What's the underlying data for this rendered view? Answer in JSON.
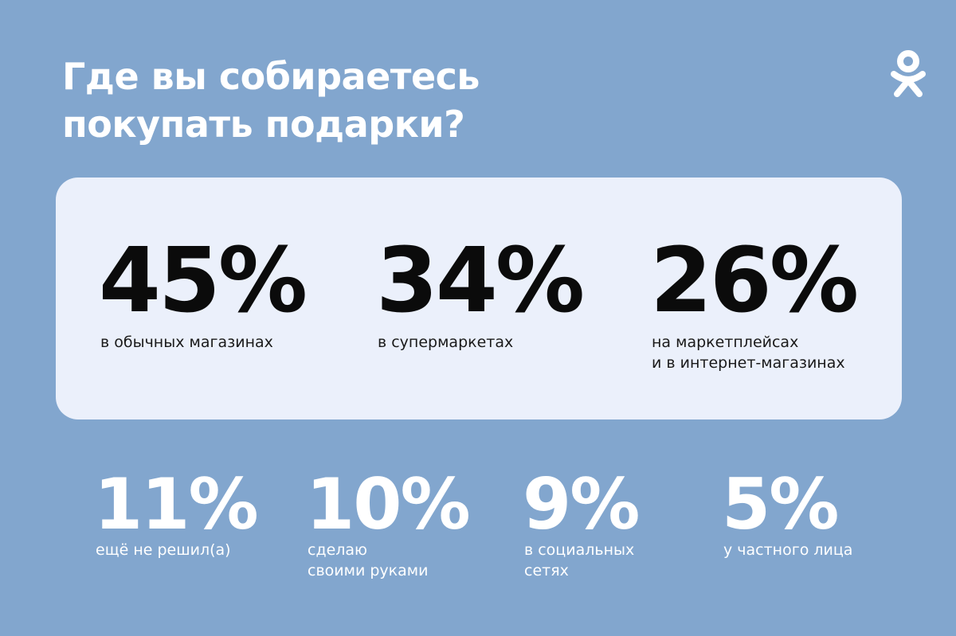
{
  "title": "Где вы собираетесь\nпокупать подарки?",
  "logo": {
    "icon": "odnoklassniki-logo-icon",
    "color": "#ffffff"
  },
  "colors": {
    "background": "#82a6ce",
    "card": "#ebf0fb",
    "primary_text": "#0b0b0b",
    "secondary_text": "#ffffff"
  },
  "chart_data": {
    "type": "table",
    "title": "Где вы собираетесь покупать подарки?",
    "unit": "%",
    "categories": [
      "в обычных магазинах",
      "в супермаркетах",
      "на маркетплейсах и в интернет-магазинах",
      "ещё не решил(а)",
      "сделаю своими руками",
      "в социальных сетях",
      "у частного лица"
    ],
    "values": [
      45,
      34,
      26,
      11,
      10,
      9,
      5
    ]
  },
  "highlight": [
    {
      "value": "45%",
      "label": "в обычных магазинах"
    },
    {
      "value": "34%",
      "label": "в супермаркетах"
    },
    {
      "value": "26%",
      "label": "на маркетплейсах\nи в интернет-магазинах"
    }
  ],
  "others": [
    {
      "value": "11%",
      "label": "ещё не решил(а)"
    },
    {
      "value": "10%",
      "label": "сделаю\nсвоими руками"
    },
    {
      "value": "9%",
      "label": "в социальных\nсетях"
    },
    {
      "value": "5%",
      "label": "у частного лица"
    }
  ]
}
